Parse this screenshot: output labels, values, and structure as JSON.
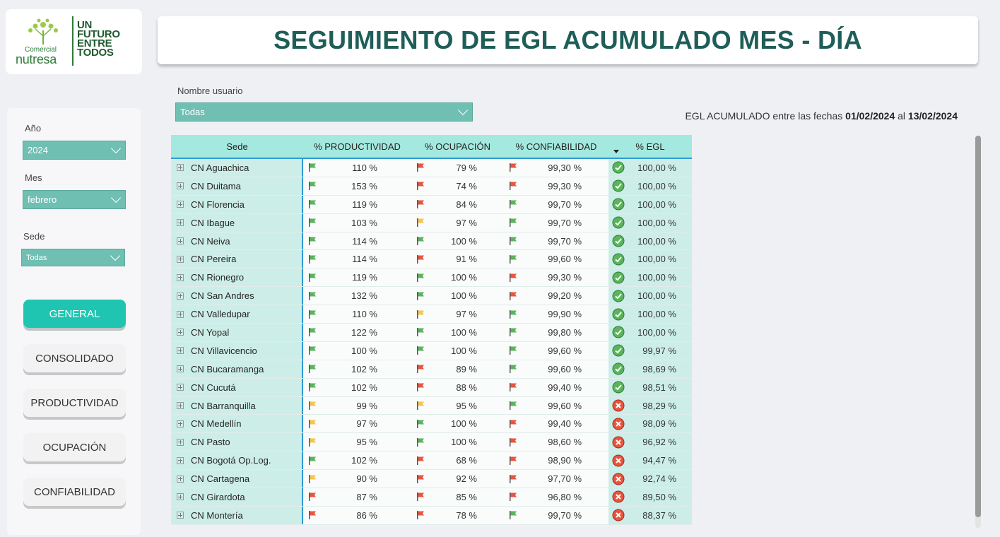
{
  "logo": {
    "small": "Comercial",
    "brand": "nutresa",
    "slogan": [
      "UN",
      "FUTURO",
      "ENTRE",
      "TODOS"
    ]
  },
  "title": "SEGUIMIENTO DE EGL ACUMULADO MES - DÍA",
  "filters": {
    "anio": {
      "label": "Año",
      "value": "2024"
    },
    "mes": {
      "label": "Mes",
      "value": "febrero"
    },
    "sede": {
      "label": "Sede",
      "value": "Todas"
    },
    "usuario": {
      "label": "Nombre usuario",
      "value": "Todas"
    }
  },
  "nav": {
    "general": "GENERAL",
    "consolidado": "CONSOLIDADO",
    "productividad": "PRODUCTIVIDAD",
    "ocupacion": "OCUPACIÓN",
    "confiabilidad": "CONFIABILIDAD"
  },
  "range": {
    "prefix": "EGL ACUMULADO entre las fechas",
    "from": "01/02/2024",
    "joiner": "al",
    "to": "13/02/2024"
  },
  "colors": {
    "green": "#5ab55a",
    "red": "#e8553e",
    "yellow": "#f5c64c",
    "accent": "#1fc5b1",
    "header": "#a4e9df"
  },
  "table": {
    "headers": {
      "sede": "Sede",
      "prod": "% PRODUCTIVIDAD",
      "ocu": "% OCUPACIÓN",
      "conf": "% CONFIABILIDAD",
      "egl": "% EGL"
    },
    "rows": [
      {
        "sede": "CN Aguachica",
        "prod": "110 %",
        "pf": "green",
        "ocu": "79 %",
        "of": "red",
        "conf": "99,30 %",
        "cf": "red",
        "egl": "100,00 %",
        "ok": true
      },
      {
        "sede": "CN Duitama",
        "prod": "153 %",
        "pf": "green",
        "ocu": "74 %",
        "of": "red",
        "conf": "99,30 %",
        "cf": "red",
        "egl": "100,00 %",
        "ok": true
      },
      {
        "sede": "CN Florencia",
        "prod": "119 %",
        "pf": "green",
        "ocu": "84 %",
        "of": "red",
        "conf": "99,70 %",
        "cf": "green",
        "egl": "100,00 %",
        "ok": true
      },
      {
        "sede": "CN Ibague",
        "prod": "103 %",
        "pf": "green",
        "ocu": "97 %",
        "of": "yellow",
        "conf": "99,70 %",
        "cf": "green",
        "egl": "100,00 %",
        "ok": true
      },
      {
        "sede": "CN Neiva",
        "prod": "114 %",
        "pf": "green",
        "ocu": "100 %",
        "of": "green",
        "conf": "99,70 %",
        "cf": "green",
        "egl": "100,00 %",
        "ok": true
      },
      {
        "sede": "CN Pereira",
        "prod": "114 %",
        "pf": "green",
        "ocu": "91 %",
        "of": "red",
        "conf": "99,60 %",
        "cf": "green",
        "egl": "100,00 %",
        "ok": true
      },
      {
        "sede": "CN Rionegro",
        "prod": "119 %",
        "pf": "green",
        "ocu": "100 %",
        "of": "green",
        "conf": "99,30 %",
        "cf": "red",
        "egl": "100,00 %",
        "ok": true
      },
      {
        "sede": "CN San Andres",
        "prod": "132 %",
        "pf": "green",
        "ocu": "100 %",
        "of": "green",
        "conf": "99,20 %",
        "cf": "red",
        "egl": "100,00 %",
        "ok": true
      },
      {
        "sede": "CN Valledupar",
        "prod": "110 %",
        "pf": "green",
        "ocu": "97 %",
        "of": "yellow",
        "conf": "99,90 %",
        "cf": "green",
        "egl": "100,00 %",
        "ok": true
      },
      {
        "sede": "CN Yopal",
        "prod": "122 %",
        "pf": "green",
        "ocu": "100 %",
        "of": "green",
        "conf": "99,80 %",
        "cf": "green",
        "egl": "100,00 %",
        "ok": true
      },
      {
        "sede": "CN Villavicencio",
        "prod": "100 %",
        "pf": "green",
        "ocu": "100 %",
        "of": "green",
        "conf": "99,60 %",
        "cf": "green",
        "egl": "99,97 %",
        "ok": true
      },
      {
        "sede": "CN Bucaramanga",
        "prod": "102 %",
        "pf": "green",
        "ocu": "89 %",
        "of": "red",
        "conf": "99,60 %",
        "cf": "green",
        "egl": "98,69 %",
        "ok": true
      },
      {
        "sede": "CN Cucutá",
        "prod": "102 %",
        "pf": "green",
        "ocu": "88 %",
        "of": "red",
        "conf": "99,40 %",
        "cf": "red",
        "egl": "98,51 %",
        "ok": true
      },
      {
        "sede": "CN Barranquilla",
        "prod": "99 %",
        "pf": "yellow",
        "ocu": "95 %",
        "of": "yellow",
        "conf": "99,60 %",
        "cf": "green",
        "egl": "98,29 %",
        "ok": false
      },
      {
        "sede": "CN Medellín",
        "prod": "97 %",
        "pf": "yellow",
        "ocu": "100 %",
        "of": "green",
        "conf": "99,40 %",
        "cf": "red",
        "egl": "98,09 %",
        "ok": false
      },
      {
        "sede": "CN Pasto",
        "prod": "95 %",
        "pf": "yellow",
        "ocu": "100 %",
        "of": "green",
        "conf": "98,60 %",
        "cf": "red",
        "egl": "96,92 %",
        "ok": false
      },
      {
        "sede": "CN Bogotá Op.Log.",
        "prod": "102 %",
        "pf": "green",
        "ocu": "68 %",
        "of": "red",
        "conf": "98,90 %",
        "cf": "red",
        "egl": "94,47 %",
        "ok": false
      },
      {
        "sede": "CN Cartagena",
        "prod": "90 %",
        "pf": "yellow",
        "ocu": "92 %",
        "of": "red",
        "conf": "97,70 %",
        "cf": "red",
        "egl": "92,74 %",
        "ok": false
      },
      {
        "sede": "CN Girardota",
        "prod": "87 %",
        "pf": "red",
        "ocu": "85 %",
        "of": "red",
        "conf": "96,80 %",
        "cf": "red",
        "egl": "89,50 %",
        "ok": false
      },
      {
        "sede": "CN Montería",
        "prod": "86 %",
        "pf": "red",
        "ocu": "78 %",
        "of": "red",
        "conf": "99,70 %",
        "cf": "green",
        "egl": "88,37 %",
        "ok": false
      }
    ]
  }
}
